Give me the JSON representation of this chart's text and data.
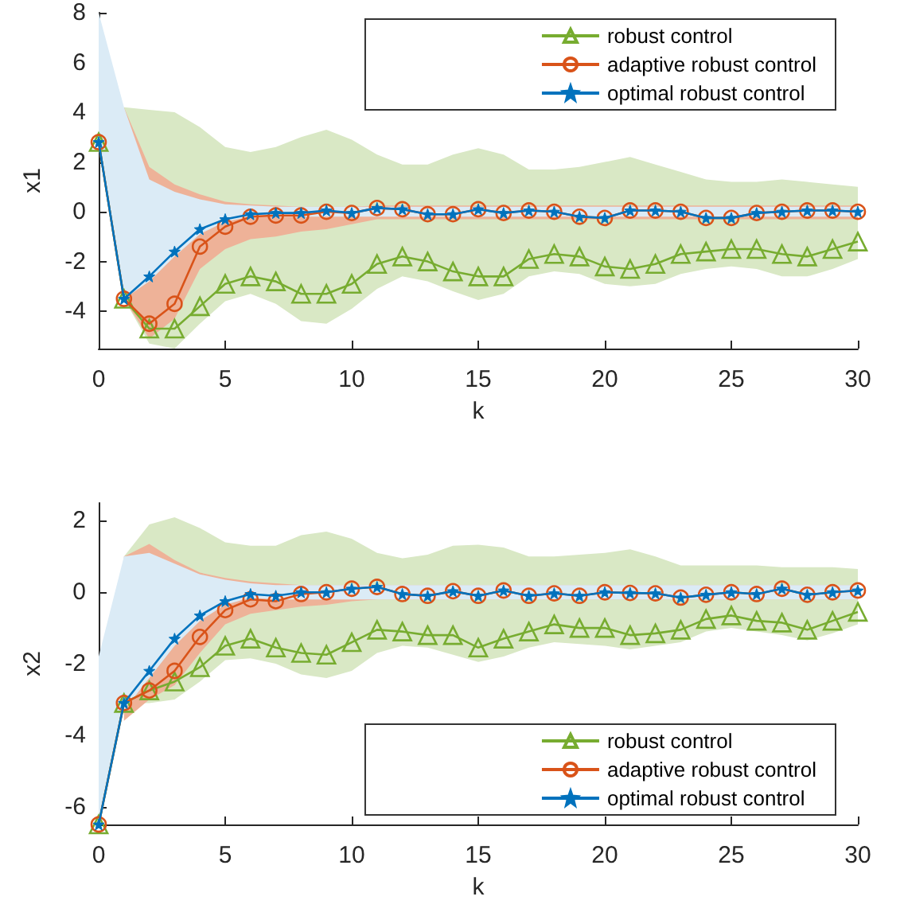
{
  "chart_data": [
    {
      "type": "line",
      "xlabel": "k",
      "ylabel": "x1",
      "x": [
        0,
        1,
        2,
        3,
        4,
        5,
        6,
        7,
        8,
        9,
        10,
        11,
        12,
        13,
        14,
        15,
        16,
        17,
        18,
        19,
        20,
        21,
        22,
        23,
        24,
        25,
        26,
        27,
        28,
        29,
        30
      ],
      "xlim": [
        0,
        30
      ],
      "xticks": [
        0,
        5,
        10,
        15,
        20,
        25,
        30
      ],
      "ylim": [
        -5.5,
        8
      ],
      "yticks": [
        -4,
        -2,
        0,
        2,
        4,
        6,
        8
      ],
      "grid": false,
      "legend": "top right",
      "series": [
        {
          "name": "robust control",
          "color": "#77ac30",
          "marker": "triangle",
          "values": [
            2.8,
            -3.5,
            -4.7,
            -4.7,
            -3.8,
            -2.9,
            -2.6,
            -2.8,
            -3.3,
            -3.3,
            -2.9,
            -2.1,
            -1.8,
            -2.0,
            -2.4,
            -2.6,
            -2.6,
            -1.9,
            -1.7,
            -1.8,
            -2.2,
            -2.3,
            -2.1,
            -1.7,
            -1.6,
            -1.5,
            -1.5,
            -1.7,
            -1.8,
            -1.5,
            -1.2
          ],
          "upper": [
            null,
            4.2,
            4.1,
            4.0,
            3.4,
            2.6,
            2.4,
            2.6,
            3.0,
            3.3,
            2.9,
            2.3,
            1.9,
            1.9,
            2.3,
            2.55,
            2.3,
            1.7,
            1.7,
            1.8,
            2.0,
            2.2,
            1.9,
            1.6,
            1.3,
            1.2,
            1.2,
            1.3,
            1.2,
            1.1,
            1.0
          ],
          "lower": [
            null,
            -3.5,
            -5.3,
            -5.5,
            -4.5,
            -3.6,
            -3.3,
            -3.7,
            -4.4,
            -4.5,
            -3.9,
            -3.1,
            -2.6,
            -2.8,
            -3.2,
            -3.55,
            -3.3,
            -2.6,
            -2.4,
            -2.5,
            -2.9,
            -3.0,
            -2.9,
            -2.5,
            -2.3,
            -2.2,
            -2.3,
            -2.6,
            -2.6,
            -2.3,
            -1.9
          ]
        },
        {
          "name": "adaptive robust control",
          "color": "#d95319",
          "marker": "circle",
          "values": [
            2.8,
            -3.5,
            -4.5,
            -3.7,
            -1.4,
            -0.6,
            -0.2,
            -0.15,
            -0.15,
            0.0,
            -0.05,
            0.15,
            0.1,
            -0.1,
            -0.1,
            0.1,
            -0.05,
            0.05,
            0.0,
            -0.2,
            -0.25,
            0.05,
            0.05,
            0.0,
            -0.25,
            -0.25,
            -0.05,
            0.0,
            0.05,
            0.05,
            0.0
          ],
          "upper": [
            null,
            4.2,
            1.8,
            1.1,
            0.7,
            0.4,
            0.3,
            0.25,
            0.2,
            0.2,
            0.2,
            0.25,
            0.25,
            0.25,
            0.25,
            0.25,
            0.25,
            0.25,
            0.25,
            0.25,
            0.25,
            0.25,
            0.25,
            0.25,
            0.25,
            0.25,
            0.25,
            0.25,
            0.25,
            0.25,
            0.25
          ],
          "lower": [
            null,
            -3.5,
            -5.1,
            -4.3,
            -2.3,
            -1.5,
            -1.1,
            -1.0,
            -0.8,
            -0.7,
            -0.5,
            -0.3,
            -0.3,
            -0.3,
            -0.3,
            -0.3,
            -0.3,
            -0.3,
            -0.3,
            -0.3,
            -0.3,
            -0.3,
            -0.3,
            -0.3,
            -0.3,
            -0.3,
            -0.3,
            -0.3,
            -0.3,
            -0.3,
            -0.3
          ]
        },
        {
          "name": "optimal robust control",
          "color": "#0072bd",
          "marker": "star",
          "values": [
            2.8,
            -3.5,
            -2.6,
            -1.6,
            -0.7,
            -0.3,
            -0.1,
            -0.05,
            -0.05,
            0.05,
            -0.05,
            0.15,
            0.1,
            -0.1,
            -0.1,
            0.1,
            -0.05,
            0.05,
            0.0,
            -0.2,
            -0.25,
            0.05,
            0.05,
            0.0,
            -0.25,
            -0.25,
            -0.05,
            0.0,
            0.05,
            0.05,
            0.0
          ],
          "upper": [
            8,
            4.2,
            1.3,
            0.8,
            0.5,
            0.3,
            0.25,
            0.2,
            0.2,
            0.2,
            0.2,
            0.2,
            0.2,
            0.2,
            0.2,
            0.2,
            0.2,
            0.2,
            0.2,
            0.2,
            0.2,
            0.2,
            0.2,
            0.2,
            0.2,
            0.2,
            0.2,
            0.2,
            0.2,
            0.2,
            0.2
          ],
          "lower": [
            2.8,
            -3.5,
            -2.8,
            -1.8,
            -0.9,
            -0.4,
            -0.2,
            -0.2,
            -0.2,
            -0.2,
            -0.2,
            -0.2,
            -0.2,
            -0.2,
            -0.2,
            -0.2,
            -0.2,
            -0.2,
            -0.2,
            -0.2,
            -0.2,
            -0.2,
            -0.2,
            -0.2,
            -0.2,
            -0.2,
            -0.2,
            -0.2,
            -0.2,
            -0.2,
            -0.2
          ]
        }
      ]
    },
    {
      "type": "line",
      "xlabel": "k",
      "ylabel": "x2",
      "x": [
        0,
        1,
        2,
        3,
        4,
        5,
        6,
        7,
        8,
        9,
        10,
        11,
        12,
        13,
        14,
        15,
        16,
        17,
        18,
        19,
        20,
        21,
        22,
        23,
        24,
        25,
        26,
        27,
        28,
        29,
        30
      ],
      "xlim": [
        0,
        30
      ],
      "xticks": [
        0,
        5,
        10,
        15,
        20,
        25,
        30
      ],
      "ylim": [
        -6.5,
        2.5
      ],
      "yticks": [
        -6,
        -4,
        -2,
        0,
        2
      ],
      "grid": false,
      "legend": "bottom right",
      "series": [
        {
          "name": "robust control",
          "color": "#77ac30",
          "marker": "triangle",
          "values": [
            -6.5,
            -3.1,
            -2.75,
            -2.5,
            -2.1,
            -1.5,
            -1.3,
            -1.55,
            -1.7,
            -1.75,
            -1.4,
            -1.05,
            -1.1,
            -1.2,
            -1.2,
            -1.55,
            -1.3,
            -1.1,
            -0.9,
            -1.0,
            -1.0,
            -1.2,
            -1.15,
            -1.05,
            -0.75,
            -0.65,
            -0.8,
            -0.85,
            -1.05,
            -0.8,
            -0.55
          ],
          "upper": [
            null,
            1.0,
            1.9,
            2.1,
            1.8,
            1.4,
            1.3,
            1.3,
            1.6,
            1.7,
            1.5,
            1.1,
            0.95,
            1.05,
            1.3,
            1.33,
            1.25,
            1.0,
            1.0,
            1.05,
            1.1,
            1.2,
            1.0,
            0.75,
            0.75,
            0.75,
            0.75,
            0.7,
            0.7,
            0.7,
            0.65
          ],
          "lower": [
            null,
            -3.1,
            -3.1,
            -3.0,
            -2.5,
            -1.9,
            -1.85,
            -2.0,
            -2.3,
            -2.4,
            -2.2,
            -1.7,
            -1.5,
            -1.55,
            -1.75,
            -1.95,
            -1.8,
            -1.55,
            -1.4,
            -1.45,
            -1.5,
            -1.6,
            -1.5,
            -1.4,
            -1.1,
            -1.0,
            -1.1,
            -1.2,
            -1.35,
            -1.15,
            -0.9
          ]
        },
        {
          "name": "adaptive robust control",
          "color": "#d95319",
          "marker": "circle",
          "values": [
            -6.5,
            -3.1,
            -2.75,
            -2.2,
            -1.25,
            -0.5,
            -0.2,
            -0.25,
            -0.05,
            0.0,
            0.1,
            0.15,
            -0.05,
            -0.1,
            0.03,
            -0.1,
            0.05,
            -0.1,
            -0.03,
            -0.1,
            0.0,
            -0.02,
            -0.03,
            -0.15,
            -0.07,
            0.0,
            -0.05,
            0.1,
            -0.07,
            0.0,
            0.05
          ],
          "upper": [
            null,
            1.0,
            1.35,
            0.9,
            0.55,
            0.4,
            0.3,
            0.25,
            0.2,
            0.2,
            0.2,
            0.2,
            0.2,
            0.2,
            0.2,
            0.2,
            0.2,
            0.2,
            0.2,
            0.2,
            0.2,
            0.2,
            0.2,
            0.2,
            0.2,
            0.2,
            0.2,
            0.2,
            0.2,
            0.2,
            0.2
          ],
          "lower": [
            null,
            -3.6,
            -3.0,
            -2.6,
            -1.7,
            -0.9,
            -0.6,
            -0.5,
            -0.4,
            -0.35,
            -0.25,
            -0.2,
            -0.2,
            -0.2,
            -0.2,
            -0.2,
            -0.2,
            -0.2,
            -0.2,
            -0.2,
            -0.2,
            -0.2,
            -0.2,
            -0.2,
            -0.2,
            -0.2,
            -0.2,
            -0.2,
            -0.2,
            -0.2,
            -0.2
          ]
        },
        {
          "name": "optimal robust control",
          "color": "#0072bd",
          "marker": "star",
          "values": [
            -6.5,
            -3.1,
            -2.2,
            -1.3,
            -0.65,
            -0.25,
            -0.05,
            -0.1,
            0.0,
            0.0,
            0.1,
            0.15,
            -0.05,
            -0.1,
            0.03,
            -0.1,
            0.05,
            -0.1,
            -0.03,
            -0.1,
            0.0,
            -0.02,
            -0.03,
            -0.15,
            -0.07,
            0.0,
            -0.05,
            0.1,
            -0.07,
            0.0,
            0.05
          ],
          "upper": [
            -1.8,
            1.0,
            1.1,
            0.8,
            0.5,
            0.35,
            0.25,
            0.2,
            0.2,
            0.2,
            0.2,
            0.2,
            0.2,
            0.2,
            0.2,
            0.2,
            0.2,
            0.2,
            0.2,
            0.2,
            0.2,
            0.2,
            0.2,
            0.2,
            0.2,
            0.2,
            0.2,
            0.2,
            0.2,
            0.2,
            0.2
          ],
          "lower": [
            -6.5,
            -3.3,
            -2.4,
            -1.5,
            -0.8,
            -0.35,
            -0.15,
            -0.2,
            -0.2,
            -0.2,
            -0.2,
            -0.2,
            -0.2,
            -0.2,
            -0.2,
            -0.2,
            -0.2,
            -0.2,
            -0.2,
            -0.2,
            -0.2,
            -0.2,
            -0.2,
            -0.2,
            -0.2,
            -0.2,
            -0.2,
            -0.2,
            -0.2,
            -0.2,
            -0.2
          ]
        }
      ]
    }
  ]
}
